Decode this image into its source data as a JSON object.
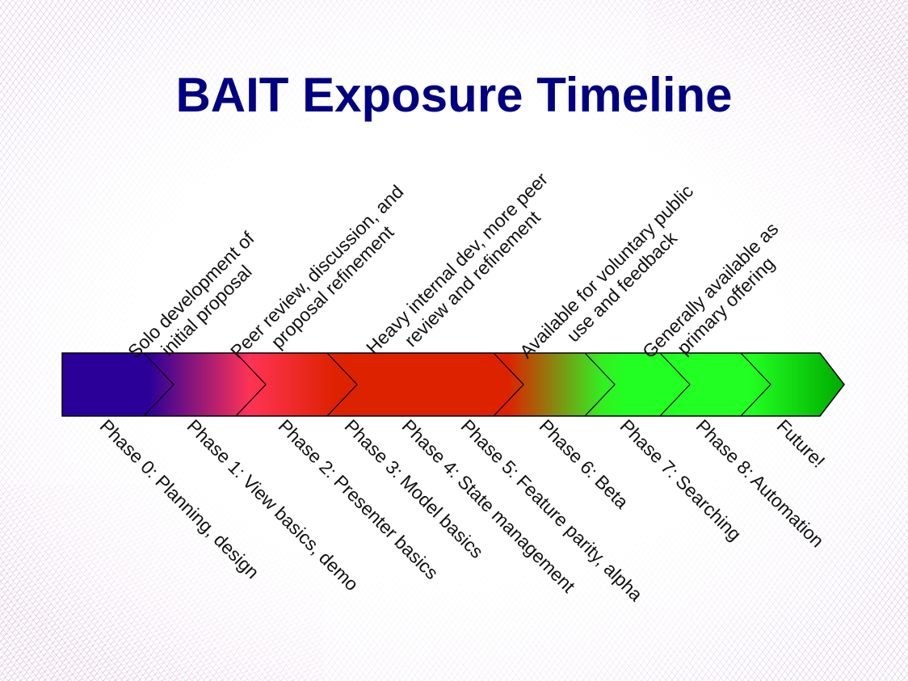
{
  "title": "BAIT Exposure Timeline",
  "stage_groups": [
    {
      "line1": "Solo development of",
      "line2": "initial proposal"
    },
    {
      "line1": "Peer review, discussion, and",
      "line2": "proposal refinement"
    },
    {
      "line1": "Heavy internal dev, more peer",
      "line2": "review and refinement"
    },
    {
      "line1": "Available for voluntary public",
      "line2": "use and feedback"
    },
    {
      "line1": "Generally available as",
      "line2": "primary offering"
    }
  ],
  "phases": [
    {
      "label": "Phase 0: Planning, design",
      "color": "#2a0099"
    },
    {
      "label": "Phase 1: View basics, demo",
      "color": "#7a1478"
    },
    {
      "label": "Phase 2: Presenter basics",
      "color": "#ff3355"
    },
    {
      "label": "Phase 3: Model basics",
      "color": "#e01e14"
    },
    {
      "label": "Phase 4: State management",
      "color": "#dd2000"
    },
    {
      "label": "Phase 5: Feature parity, alpha",
      "color": "#dd2200"
    },
    {
      "label": "Phase 6: Beta",
      "color": "#99550c"
    },
    {
      "label": "Phase 7: Searching",
      "color": "#22ff22"
    },
    {
      "label": "Phase 8: Automation",
      "color": "#22ff22"
    },
    {
      "label": "Future!",
      "color": "#00bb00"
    }
  ],
  "colors": {
    "title": "#000080",
    "phase0": "#2a0099",
    "phase2": "#ff3355",
    "phase3to5": "#dd2200",
    "phase7to8": "#22ff22",
    "future": "#00aa00"
  }
}
